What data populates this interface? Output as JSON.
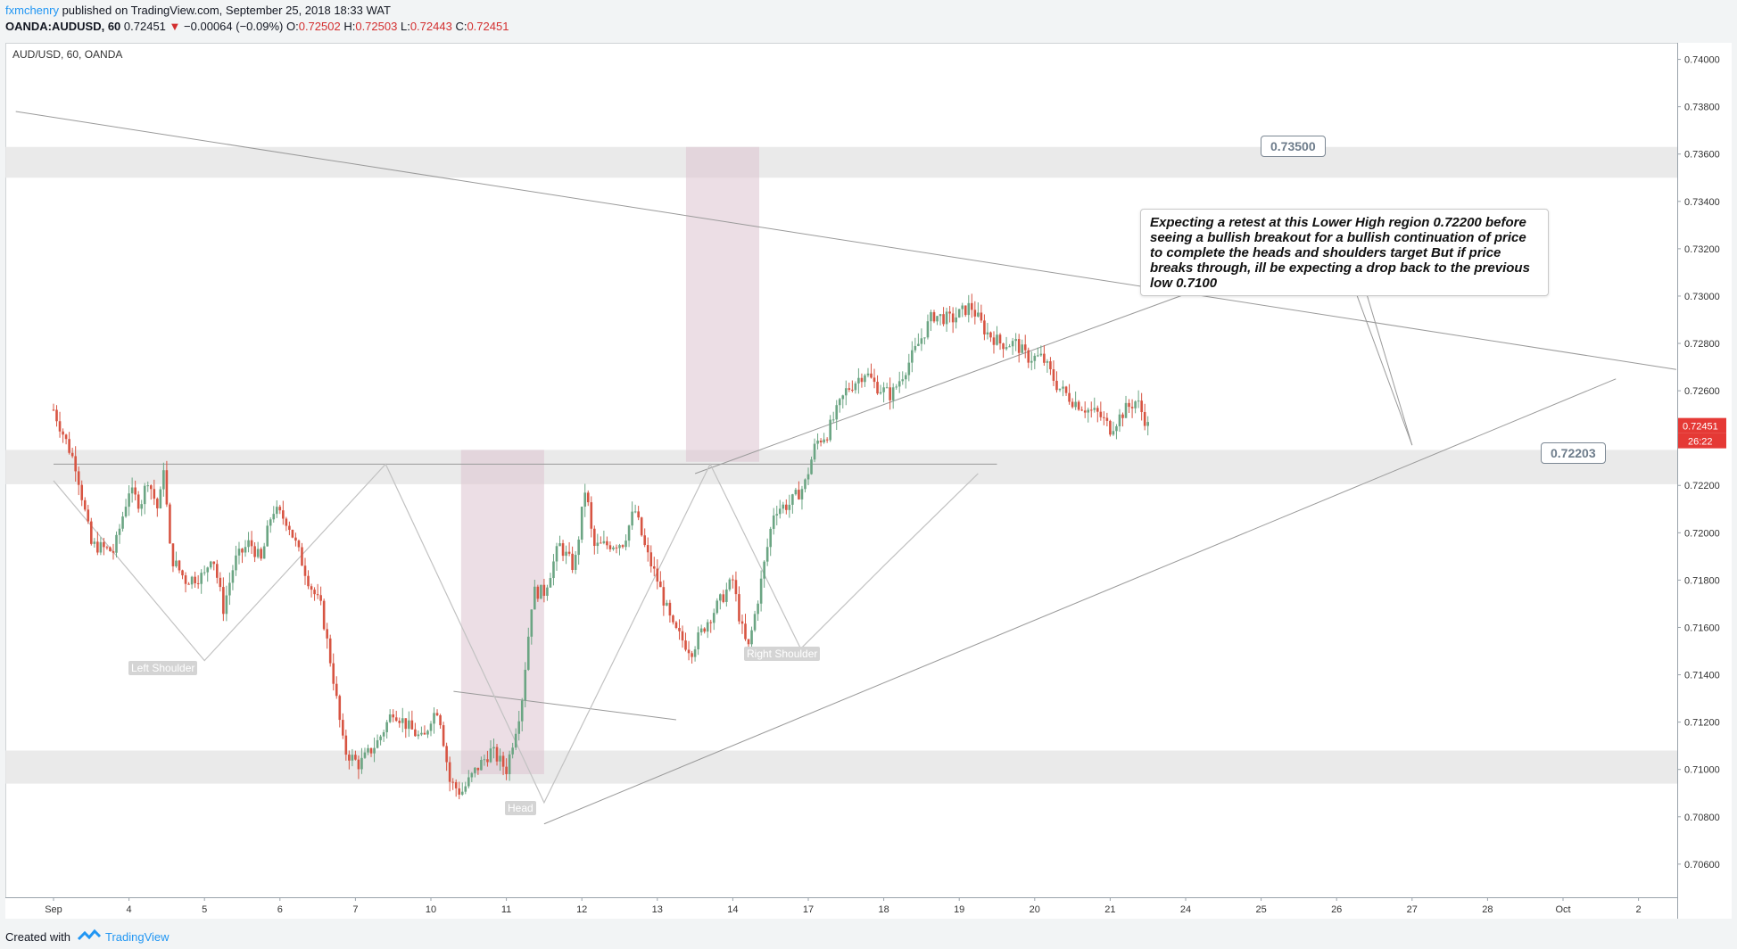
{
  "header": {
    "author": "fxmchenry",
    "published": " published on TradingView.com, September 25, 2018 18:33 WAT",
    "symbol": "OANDA:AUDUSD, 60",
    "last": "0.72451",
    "change_arrow": "▼",
    "change": "−0.00064 (−0.09%)",
    "o_label": "O:",
    "o_value": "0.72502",
    "h_label": "H:",
    "h_value": "0.72503",
    "l_label": "L:",
    "l_value": "0.72443",
    "c_label": "C:",
    "c_value": "0.72451"
  },
  "footer": {
    "created_with": "Created with",
    "brand": "TradingView",
    "logo_icon": "tradingview-logo-icon"
  },
  "chart_data": {
    "type": "candlestick",
    "title": "AUD/USD, 60, OANDA",
    "ylim": [
      0.7046,
      0.7407
    ],
    "y_ticks": [
      "0.74000",
      "0.73800",
      "0.73600",
      "0.73400",
      "0.73200",
      "0.73000",
      "0.72800",
      "0.72600",
      "0.72400",
      "0.72200",
      "0.72000",
      "0.71800",
      "0.71600",
      "0.71400",
      "0.71200",
      "0.71000",
      "0.70800",
      "0.70600"
    ],
    "x_ticks": [
      "Sep",
      "4",
      "5",
      "6",
      "7",
      "10",
      "11",
      "12",
      "13",
      "14",
      "17",
      "18",
      "19",
      "20",
      "21",
      "24",
      "25",
      "26",
      "27",
      "28",
      "Oct",
      "2"
    ],
    "last_price_label": "0.72451",
    "countdown_label": "26:22",
    "colors": {
      "up": "#6ba583",
      "down": "#d75442",
      "zone": "#e6e6e6",
      "measure": "#ddc3d0",
      "line": "#9a9a9a",
      "last": "#e53935"
    },
    "price_path": [
      [
        0.0,
        0.7252
      ],
      [
        0.3,
        0.7228
      ],
      [
        0.5,
        0.7195
      ],
      [
        0.8,
        0.7192
      ],
      [
        1.0,
        0.7218
      ],
      [
        1.15,
        0.7212
      ],
      [
        1.25,
        0.7223
      ],
      [
        1.4,
        0.7208
      ],
      [
        1.45,
        0.7232
      ],
      [
        1.55,
        0.719
      ],
      [
        1.75,
        0.718
      ],
      [
        2.0,
        0.7182
      ],
      [
        2.1,
        0.7192
      ],
      [
        2.25,
        0.7168
      ],
      [
        2.4,
        0.7188
      ],
      [
        2.6,
        0.7196
      ],
      [
        2.75,
        0.7188
      ],
      [
        2.9,
        0.721
      ],
      [
        3.1,
        0.7205
      ],
      [
        3.4,
        0.7178
      ],
      [
        3.55,
        0.7168
      ],
      [
        3.7,
        0.714
      ],
      [
        3.85,
        0.7108
      ],
      [
        4.05,
        0.7102
      ],
      [
        4.3,
        0.7112
      ],
      [
        4.5,
        0.7125
      ],
      [
        4.7,
        0.7118
      ],
      [
        4.9,
        0.7112
      ],
      [
        5.0,
        0.7122
      ],
      [
        5.1,
        0.7126
      ],
      [
        5.25,
        0.7095
      ],
      [
        5.4,
        0.709
      ],
      [
        5.6,
        0.71
      ],
      [
        5.8,
        0.7108
      ],
      [
        6.0,
        0.71
      ],
      [
        6.2,
        0.7128
      ],
      [
        6.35,
        0.7175
      ],
      [
        6.5,
        0.7175
      ],
      [
        6.7,
        0.7195
      ],
      [
        6.9,
        0.7185
      ],
      [
        7.05,
        0.722
      ],
      [
        7.15,
        0.7194
      ],
      [
        7.35,
        0.7195
      ],
      [
        7.55,
        0.7196
      ],
      [
        7.7,
        0.721
      ],
      [
        7.85,
        0.7192
      ],
      [
        8.0,
        0.718
      ],
      [
        8.2,
        0.716
      ],
      [
        8.45,
        0.715
      ],
      [
        8.65,
        0.7162
      ],
      [
        8.85,
        0.7172
      ],
      [
        9.0,
        0.718
      ],
      [
        9.1,
        0.7162
      ],
      [
        9.2,
        0.715
      ],
      [
        9.35,
        0.7175
      ],
      [
        9.55,
        0.721
      ],
      [
        9.75,
        0.7212
      ],
      [
        9.95,
        0.722
      ],
      [
        10.1,
        0.7238
      ],
      [
        10.25,
        0.7242
      ],
      [
        10.5,
        0.726
      ],
      [
        10.75,
        0.7268
      ],
      [
        10.9,
        0.7262
      ],
      [
        11.1,
        0.7258
      ],
      [
        11.4,
        0.7276
      ],
      [
        11.65,
        0.7292
      ],
      [
        11.9,
        0.729
      ],
      [
        12.15,
        0.7296
      ],
      [
        12.35,
        0.7285
      ],
      [
        12.55,
        0.728
      ],
      [
        12.75,
        0.728
      ],
      [
        12.9,
        0.7274
      ],
      [
        13.1,
        0.7274
      ],
      [
        13.3,
        0.7262
      ],
      [
        13.5,
        0.7256
      ],
      [
        13.7,
        0.7252
      ],
      [
        13.85,
        0.725
      ],
      [
        14.0,
        0.7244
      ],
      [
        14.2,
        0.7252
      ],
      [
        14.35,
        0.7256
      ],
      [
        14.5,
        0.7245
      ]
    ],
    "zones": [
      {
        "name": "resistance-zone-0.735",
        "y": [
          0.735,
          0.7363
        ]
      },
      {
        "name": "support-zone-0.722",
        "y": [
          0.72205,
          0.7235
        ]
      },
      {
        "name": "support-zone-0.710",
        "y": [
          0.7094,
          0.7108
        ]
      }
    ],
    "measure_boxes": [
      {
        "name": "measure-box-head",
        "x": [
          5.4,
          6.5
        ],
        "y": [
          0.7098,
          0.7235
        ]
      },
      {
        "name": "measure-box-breakout",
        "x": [
          8.38,
          9.35
        ],
        "y": [
          0.723,
          0.7363
        ]
      }
    ],
    "trendlines": [
      {
        "name": "descending-trendline",
        "from": [
          -0.5,
          0.7378
        ],
        "to": [
          21.5,
          0.7269
        ]
      },
      {
        "name": "ascending-trendline",
        "from": [
          6.5,
          0.7077
        ],
        "to": [
          20.7,
          0.7265
        ]
      },
      {
        "name": "upper-channel-line",
        "from": [
          8.5,
          0.7225
        ],
        "to": [
          15.1,
          0.7302
        ]
      },
      {
        "name": "neckline",
        "from": [
          0.0,
          0.7229
        ],
        "to": [
          12.5,
          0.7229
        ]
      },
      {
        "name": "head-downsloping-line",
        "from": [
          5.3,
          0.7133
        ],
        "to": [
          8.25,
          0.7121
        ]
      }
    ],
    "zigzag": [
      [
        0.0,
        0.7222
      ],
      [
        2.0,
        0.7146
      ],
      [
        4.4,
        0.7229
      ],
      [
        6.5,
        0.7086
      ],
      [
        8.7,
        0.7229
      ],
      [
        9.9,
        0.7151
      ],
      [
        11.0,
        0.7186
      ],
      [
        12.25,
        0.7225
      ]
    ],
    "note_pointer": {
      "from": [
        17.1,
        0.7315
      ],
      "to": [
        18.0,
        0.7237
      ]
    },
    "annotations": {
      "note": "Expecting a retest at this Lower High region 0.72200 before seeing a bullish breakout for a bullish continuation of price to complete the heads and shoulders target But if price breaks through, ill be expecting a drop back to the previous low 0.7100",
      "callout_high": "0.73500",
      "callout_low": "0.72203",
      "left_shoulder": "Left Shoulder",
      "head": "Head",
      "right_shoulder": "Right Shoulder"
    }
  }
}
